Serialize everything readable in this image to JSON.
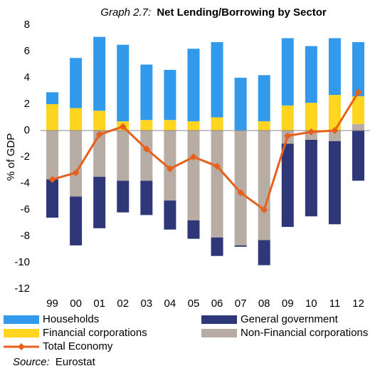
{
  "chart_data": {
    "type": "stacked_bar_line",
    "title_label": "Graph 2.7:",
    "title": "Net Lending/Borrowing by Sector",
    "ylabel": "% of GDP",
    "source_label": "Source:",
    "source": "Eurostat",
    "categories": [
      "99",
      "00",
      "01",
      "02",
      "03",
      "04",
      "05",
      "06",
      "07",
      "08",
      "09",
      "10",
      "11",
      "12"
    ],
    "series": [
      {
        "name": "Households",
        "type": "bar",
        "color": "#3399ea",
        "values": [
          0.9,
          3.8,
          5.6,
          5.8,
          4.2,
          3.8,
          5.5,
          5.7,
          4.0,
          3.5,
          5.1,
          4.3,
          4.3,
          4.1
        ]
      },
      {
        "name": "General government",
        "type": "bar",
        "color": "#2e3878",
        "values": [
          -2.9,
          -3.7,
          -3.9,
          -2.4,
          -2.6,
          -2.2,
          -1.4,
          -1.4,
          -0.1,
          -1.9,
          -6.3,
          -5.8,
          -6.3,
          -3.8
        ]
      },
      {
        "name": "Financial corporations",
        "type": "bar",
        "color": "#ffd520",
        "values": [
          2.0,
          1.7,
          1.5,
          0.7,
          0.8,
          0.8,
          0.7,
          1.0,
          0,
          0.7,
          1.9,
          2.1,
          2.7,
          2.1
        ]
      },
      {
        "name": "Non-Financial corporations",
        "type": "bar",
        "color": "#b8ada5",
        "values": [
          -3.7,
          -5.0,
          -3.5,
          -3.8,
          -3.8,
          -5.3,
          -6.8,
          -8.1,
          -8.7,
          -8.3,
          -1.0,
          -0.7,
          -0.8,
          0.5
        ]
      },
      {
        "name": "Total Economy",
        "type": "line",
        "color": "#e8601c",
        "values": [
          -3.7,
          -3.2,
          -0.3,
          0.3,
          -1.4,
          -2.9,
          -2.0,
          -2.7,
          -4.7,
          -6.0,
          -0.4,
          -0.1,
          0.0,
          2.9
        ]
      }
    ],
    "ylim": [
      -12,
      8
    ],
    "yticks": [
      -12,
      -10,
      -8,
      -6,
      -4,
      -2,
      0,
      2,
      4,
      6,
      8
    ],
    "grid": false
  }
}
